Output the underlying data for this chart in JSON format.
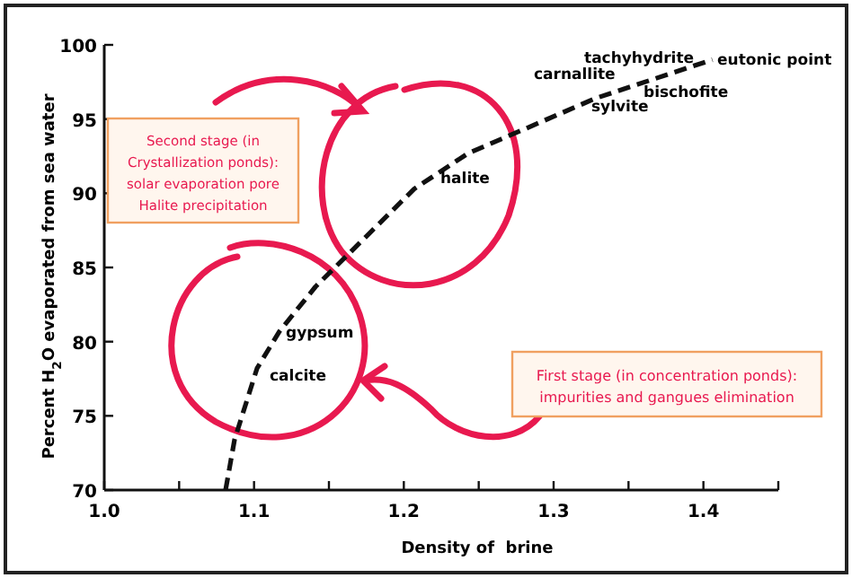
{
  "chart_data": {
    "type": "line",
    "xlabel": "Density of  brine",
    "ylabel": "Percent H$_{2}$O evaporated from sea water",
    "xlim": [
      1.0,
      1.45
    ],
    "ylim": [
      70,
      100
    ],
    "xticks": [
      {
        "value": 1.0,
        "label": "1.0"
      },
      {
        "value": 1.05,
        "label": null
      },
      {
        "value": 1.1,
        "label": "1.1"
      },
      {
        "value": 1.15,
        "label": null
      },
      {
        "value": 1.2,
        "label": "1.2"
      },
      {
        "value": 1.25,
        "label": null
      },
      {
        "value": 1.3,
        "label": "1.3"
      },
      {
        "value": 1.35,
        "label": null
      },
      {
        "value": 1.4,
        "label": "1.4"
      },
      {
        "value": 1.45,
        "label": null
      }
    ],
    "yticks": [
      70,
      75,
      80,
      85,
      90,
      95,
      100
    ],
    "grid": false,
    "marker": "none",
    "series": [
      {
        "color": "#111111",
        "line_style": "dashed",
        "x": [
          1.081,
          1.087,
          1.102,
          1.117,
          1.141,
          1.171,
          1.207,
          1.243,
          1.28,
          1.328,
          1.364,
          1.406
        ],
        "values": [
          70,
          73.4,
          78.2,
          80.7,
          83.7,
          86.7,
          90.3,
          92.7,
          94.3,
          96.4,
          97.6,
          99.0
        ]
      }
    ],
    "annotations": [
      "gypsum",
      "calcite",
      "halite",
      "sylvite",
      "carnallite",
      "tachyhydrite",
      "bischofite",
      "eutonic point",
      "Second stage (in Crystallization ponds): solar evaporation pore Halite precipitation",
      "First stage (in concentration ponds): impurities and gangues elimination"
    ]
  }
}
